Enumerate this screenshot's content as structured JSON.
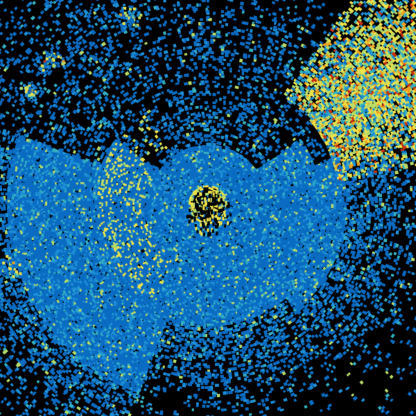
{
  "image": {
    "kind": "radar-reflectivity-sweep",
    "background_color": "#000000",
    "palette": {
      "deep_blue": "#0a6cc2",
      "light_blue": "#1e8fd6",
      "teal": "#35b0c0",
      "green_yellow": "#b8dc68",
      "yellow": "#eee24a",
      "orange": "#f0a020",
      "red": "#c8300e"
    }
  }
}
